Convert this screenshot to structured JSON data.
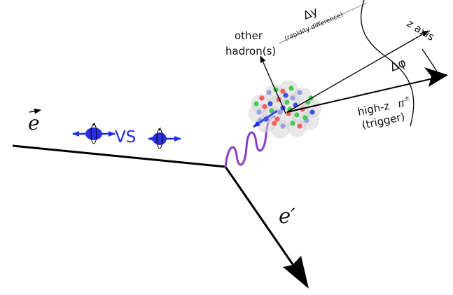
{
  "labels": {
    "beam_electron": "e",
    "vs": "VS",
    "scattered_electron": "e′",
    "other_hadrons_line1": "other",
    "other_hadrons_line2": "hadron(s)",
    "delta_y": "Δy",
    "delta_y_note": "(rapidity difference)",
    "z_axis": "z axis",
    "delta_phi": "Δφ",
    "trigger_line1": "high-z",
    "trigger_pion": "π",
    "trigger_pion_charge": "±",
    "trigger_line2": "(trigger)"
  },
  "colors": {
    "photon": "#8a3fc4",
    "spin_blue": "#1f2ee0",
    "line": "#000000",
    "nucleus_halo": "#d6d6d6",
    "quark_red": "#ee6060",
    "quark_green": "#44cc55",
    "quark_blue": "#3a4fe0",
    "quark_lavender": "#9a9ce8"
  }
}
